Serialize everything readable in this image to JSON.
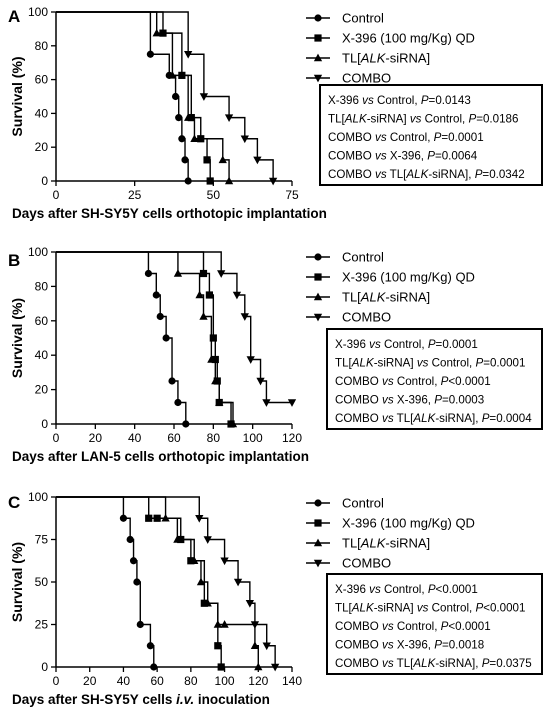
{
  "chart_data": [
    {
      "type": "line",
      "panel_label": "A",
      "ylabel": "Survival (%)",
      "xlabel": "Days after SH-SY5Y cells orthotopic implantation",
      "xlim": [
        0,
        75
      ],
      "ylim": [
        0,
        100
      ],
      "xticks": [
        0,
        25,
        50,
        75
      ],
      "yticks": [
        0,
        20,
        40,
        60,
        80,
        100
      ],
      "legend": {
        "position": "top-right",
        "items": [
          {
            "text": "Control",
            "marker": "circle"
          },
          {
            "text": "X-396 (100 mg/Kg) QD",
            "marker": "square"
          },
          {
            "text": "TL[ALK-siRNA]",
            "marker": "triangle-up"
          },
          {
            "text": "COMBO",
            "marker": "triangle-down"
          }
        ]
      },
      "stats": [
        "X-396 vs Control, P=0.0143",
        "TL[ALK-siRNA] vs Control, P=0.0186",
        "COMBO vs Control, P=0.0001",
        "COMBO vs X-396, P=0.0064",
        "COMBO vs TL[ALK-siRNA], P=0.0342"
      ],
      "series": [
        {
          "name": "Control",
          "marker": "circle",
          "x": [
            0,
            30,
            36,
            38,
            39,
            40,
            41,
            42
          ],
          "y": [
            100,
            75,
            62.5,
            50,
            37.5,
            25,
            12.5,
            0
          ]
        },
        {
          "name": "X-396 (100 mg/Kg) QD",
          "marker": "square",
          "x": [
            0,
            34,
            40,
            43,
            46,
            48,
            49
          ],
          "y": [
            100,
            87.5,
            62.5,
            37.5,
            25,
            12.5,
            0
          ]
        },
        {
          "name": "TL[ALK-siRNA]",
          "marker": "triangle-up",
          "x": [
            0,
            32,
            37,
            42,
            44,
            53,
            55
          ],
          "y": [
            100,
            87.5,
            62.5,
            37.5,
            25,
            12.5,
            0
          ]
        },
        {
          "name": "COMBO",
          "marker": "triangle-down",
          "x": [
            0,
            42,
            47,
            55,
            60,
            64,
            69
          ],
          "y": [
            100,
            75,
            50,
            37.5,
            25,
            12.5,
            0
          ]
        }
      ]
    },
    {
      "type": "line",
      "panel_label": "B",
      "ylabel": "Survival (%)",
      "xlabel": "Days after LAN-5 cells orthotopic implantation",
      "xlim": [
        0,
        120
      ],
      "ylim": [
        0,
        100
      ],
      "xticks": [
        0,
        20,
        40,
        60,
        80,
        100,
        120
      ],
      "yticks": [
        0,
        20,
        40,
        60,
        80,
        100
      ],
      "legend": {
        "position": "top-right",
        "items": [
          {
            "text": "Control",
            "marker": "circle"
          },
          {
            "text": "X-396 (100 mg/Kg) QD",
            "marker": "square"
          },
          {
            "text": "TL[ALK-siRNA]",
            "marker": "triangle-up"
          },
          {
            "text": "COMBO",
            "marker": "triangle-down"
          }
        ]
      },
      "stats": [
        "X-396 vs Control, P=0.0001",
        "TL[ALK-siRNA] vs Control, P=0.0001",
        "COMBO vs Control, P<0.0001",
        "COMBO vs X-396, P=0.0003",
        "COMBO vs TL[ALK-siRNA], P=0.0004"
      ],
      "series": [
        {
          "name": "Control",
          "marker": "circle",
          "x": [
            0,
            47,
            51,
            53,
            56,
            59,
            62,
            66
          ],
          "y": [
            100,
            87.5,
            75,
            62.5,
            50,
            25,
            12.5,
            0
          ]
        },
        {
          "name": "X-396 (100 mg/Kg) QD",
          "marker": "square",
          "x": [
            0,
            75,
            78,
            80,
            81,
            82,
            83,
            89
          ],
          "y": [
            100,
            87.5,
            75,
            50,
            37.5,
            25,
            12.5,
            0
          ]
        },
        {
          "name": "TL[ALK-siRNA]",
          "marker": "triangle-up",
          "x": [
            0,
            62,
            73,
            75,
            79,
            81,
            83,
            90
          ],
          "y": [
            100,
            87.5,
            75,
            62.5,
            37.5,
            25,
            12.5,
            0
          ]
        },
        {
          "name": "COMBO",
          "marker": "triangle-down",
          "x": [
            0,
            84,
            92,
            96,
            99,
            104,
            107,
            120
          ],
          "y": [
            100,
            87.5,
            75,
            62.5,
            37.5,
            25,
            12.5,
            12.5
          ]
        }
      ]
    },
    {
      "type": "line",
      "panel_label": "C",
      "ylabel": "Survival (%)",
      "xlabel": "Days after SH-SY5Y cells i.v. inoculation",
      "xlim": [
        0,
        140
      ],
      "ylim": [
        0,
        100
      ],
      "xticks": [
        0,
        20,
        40,
        60,
        80,
        100,
        120,
        140
      ],
      "yticks": [
        0,
        25,
        50,
        75,
        100
      ],
      "legend": {
        "position": "top-right",
        "items": [
          {
            "text": "Control",
            "marker": "circle"
          },
          {
            "text": "X-396 (100 mg/Kg) QD",
            "marker": "square"
          },
          {
            "text": "TL[ALK-siRNA]",
            "marker": "triangle-up"
          },
          {
            "text": "COMBO",
            "marker": "triangle-down"
          }
        ]
      },
      "stats": [
        "X-396 vs Control, P<0.0001",
        "TL[ALK-siRNA] vs Control, P<0.0001",
        "COMBO vs Control, P<0.0001",
        "COMBO vs X-396, P=0.0018",
        "COMBO vs TL[ALK-siRNA], P=0.0375"
      ],
      "series": [
        {
          "name": "Control",
          "marker": "circle",
          "x": [
            0,
            40,
            44,
            46,
            48,
            50,
            56,
            58
          ],
          "y": [
            100,
            87.5,
            75,
            62.5,
            50,
            25,
            12.5,
            0
          ]
        },
        {
          "name": "X-396 (100 mg/Kg) QD",
          "marker": "square",
          "x": [
            0,
            55,
            60,
            74,
            80,
            88,
            96,
            98
          ],
          "y": [
            100,
            87.5,
            87.5,
            75,
            62.5,
            37.5,
            12.5,
            0
          ]
        },
        {
          "name": "TL[ALK-siRNA]",
          "marker": "triangle-up",
          "x": [
            0,
            65,
            72,
            82,
            86,
            90,
            96,
            100,
            118,
            120
          ],
          "y": [
            100,
            87.5,
            75,
            62.5,
            50,
            37.5,
            25,
            25,
            12.5,
            0
          ]
        },
        {
          "name": "COMBO",
          "marker": "triangle-down",
          "x": [
            0,
            85,
            90,
            100,
            108,
            115,
            118,
            125,
            130
          ],
          "y": [
            100,
            87.5,
            75,
            62.5,
            50,
            37.5,
            25,
            12.5,
            0
          ]
        }
      ]
    }
  ]
}
